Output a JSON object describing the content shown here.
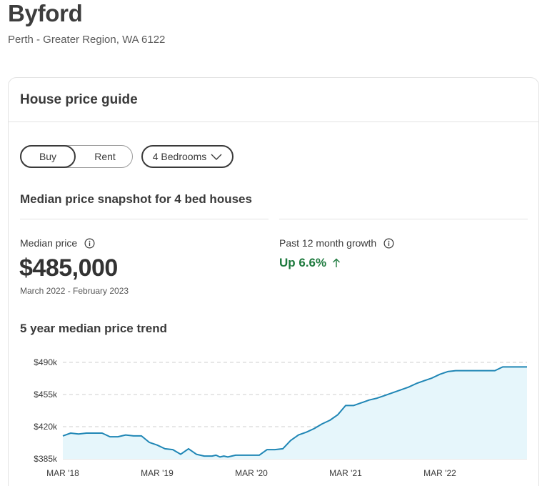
{
  "suburb": {
    "title": "Byford",
    "location": "Perth - Greater Region, WA 6122"
  },
  "card": {
    "title": "House price guide",
    "toggle": {
      "buy": "Buy",
      "rent": "Rent",
      "selected": "Buy"
    },
    "bedrooms": {
      "selected": "4 Bedrooms"
    },
    "snapshot_title": "Median price snapshot for 4 bed houses",
    "median": {
      "label": "Median price",
      "value": "$485,000",
      "period": "March 2022 - February 2023"
    },
    "growth": {
      "label": "Past 12 month growth",
      "value": "Up 6.6%"
    },
    "trend_title": "5 year median price trend"
  },
  "colors": {
    "line": "#1f86b5",
    "fill": "#e6f6fb",
    "growth_positive": "#1e7a3e"
  },
  "icons": [
    "info-icon",
    "chevron-down-icon",
    "arrow-up-icon"
  ],
  "chart_data": {
    "type": "area",
    "title": "5 year median price trend",
    "x_tick_labels": [
      "MAR '18",
      "MAR '19",
      "MAR '20",
      "MAR '21",
      "MAR '22"
    ],
    "y_tick_labels": [
      "$490k",
      "$455k",
      "$420k",
      "$385k"
    ],
    "y_ticks": [
      490000,
      455000,
      420000,
      385000
    ],
    "ylim": [
      385000,
      490000
    ],
    "grid": true,
    "x_years": [
      2018.0,
      2018.083,
      2018.167,
      2018.25,
      2018.333,
      2018.417,
      2018.5,
      2018.583,
      2018.667,
      2018.75,
      2018.833,
      2018.917,
      2019.0,
      2019.083,
      2019.167,
      2019.25,
      2019.333,
      2019.417,
      2019.5,
      2019.583,
      2019.625,
      2019.667,
      2019.708,
      2019.75,
      2019.833,
      2019.917,
      2020.0,
      2020.083,
      2020.167,
      2020.25,
      2020.333,
      2020.417,
      2020.5,
      2020.583,
      2020.667,
      2020.75,
      2020.833,
      2020.917,
      2021.0,
      2021.083,
      2021.167,
      2021.25,
      2021.333,
      2021.417,
      2021.5,
      2021.583,
      2021.667,
      2021.75,
      2021.833,
      2021.917,
      2022.0,
      2022.083,
      2022.167,
      2022.25,
      2022.333,
      2022.417,
      2022.5,
      2022.583,
      2022.667,
      2022.75,
      2022.833,
      2022.917
    ],
    "values": [
      410000,
      413000,
      412000,
      413000,
      413000,
      413000,
      409000,
      409000,
      411000,
      410000,
      410000,
      403000,
      400000,
      396000,
      395000,
      390000,
      396000,
      390000,
      388000,
      388000,
      389000,
      387000,
      388000,
      387000,
      389000,
      389000,
      389000,
      389000,
      395000,
      395000,
      396000,
      405000,
      411000,
      414000,
      418000,
      423000,
      427000,
      433000,
      443000,
      443000,
      446000,
      449000,
      451000,
      454000,
      457000,
      460000,
      463000,
      467000,
      470000,
      473000,
      477000,
      480000,
      481000,
      481000,
      481000,
      481000,
      481000,
      481000,
      485000,
      485000,
      485000,
      485000
    ]
  }
}
